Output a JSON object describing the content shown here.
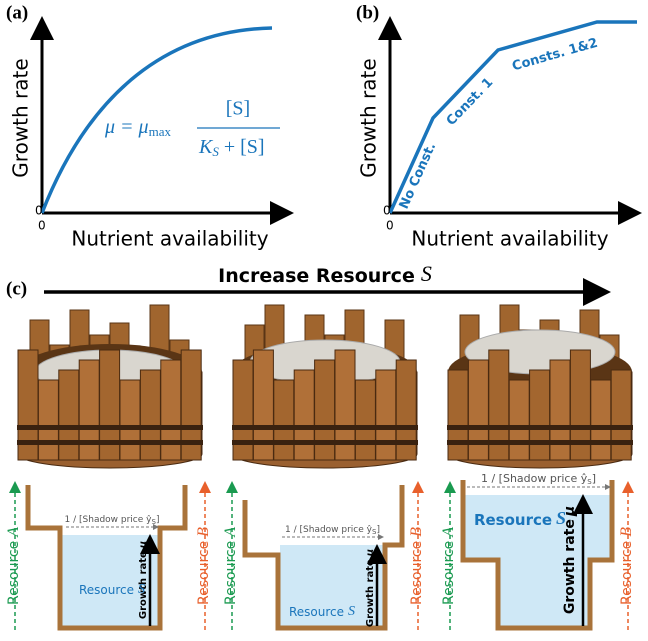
{
  "panel_a": {
    "label": "(a)",
    "y_axis": "Growth rate",
    "x_axis": "Nutrient availability",
    "x_origin": "0",
    "y_origin": "0",
    "formula": {
      "lhs": "μ = μ",
      "lhs_sub": "max",
      "numerator": "[S]",
      "denominator": "K",
      "denominator_sub": "S",
      "denominator_rest": " + [S]"
    }
  },
  "panel_b": {
    "label": "(b)",
    "y_axis": "Growth rate",
    "x_axis": "Nutrient availability",
    "x_origin": "0",
    "y_origin": "0",
    "segments": [
      "No Const.",
      "Const. 1",
      "Consts. 1&2"
    ]
  },
  "panel_c": {
    "label": "(c)",
    "arrow_text": "Increase Resource",
    "arrow_var": "S",
    "diagrams": [
      {
        "resource_a": [
          "Resource",
          "A"
        ],
        "resource_b": [
          "Resource",
          "B"
        ],
        "shadow": [
          "1 / [Shadow price ŷ",
          "S",
          "]"
        ],
        "resource_s": [
          "Resource",
          "S"
        ],
        "growth": [
          "Growth rate",
          "μ"
        ]
      },
      {
        "resource_a": [
          "Resource",
          "A"
        ],
        "resource_b": [
          "Resource",
          "B"
        ],
        "shadow": [
          "1 / [Shadow price ŷ",
          "S",
          "]"
        ],
        "resource_s": [
          "Resource",
          "S"
        ],
        "growth": [
          "Growth rate",
          "μ"
        ]
      },
      {
        "resource_a": [
          "Resource",
          "A"
        ],
        "resource_b": [
          "Resource",
          "B"
        ],
        "shadow": [
          "1 / [Shadow price ŷ",
          "S",
          "]"
        ],
        "resource_s": [
          "Resource",
          "S"
        ],
        "growth": [
          "Growth rate",
          "μ"
        ]
      }
    ]
  }
}
